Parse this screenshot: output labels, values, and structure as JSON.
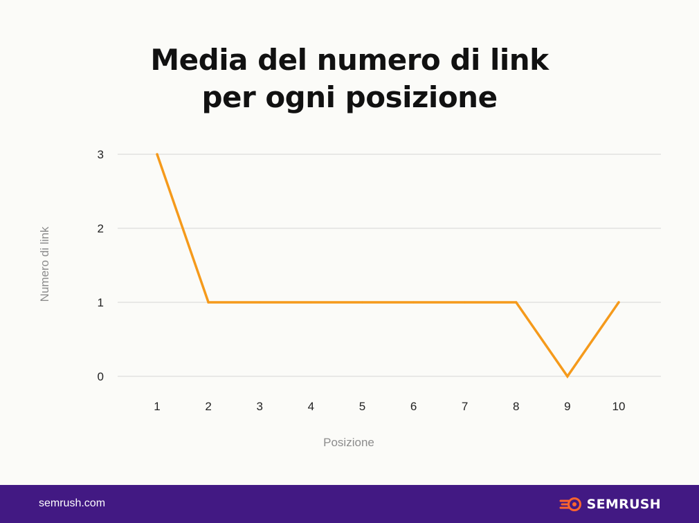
{
  "chart_data": {
    "type": "line",
    "title_lines": [
      "Media del numero di link",
      "per ogni posizione"
    ],
    "xlabel": "Posizione",
    "ylabel": "Numero di link",
    "x": [
      "1",
      "2",
      "3",
      "4",
      "5",
      "6",
      "7",
      "8",
      "9",
      "10"
    ],
    "series": [
      {
        "values": [
          3,
          1,
          1,
          1,
          1,
          1,
          1,
          1,
          0,
          1
        ],
        "color": "#f59a1b"
      }
    ],
    "yticks": [
      0,
      1,
      2,
      3
    ],
    "ylim": [
      0,
      3
    ],
    "grid": true
  },
  "footer": {
    "url": "semrush.com",
    "brand": "SEMRUSH",
    "brand_color": "#ff642d",
    "background": "#421983"
  }
}
